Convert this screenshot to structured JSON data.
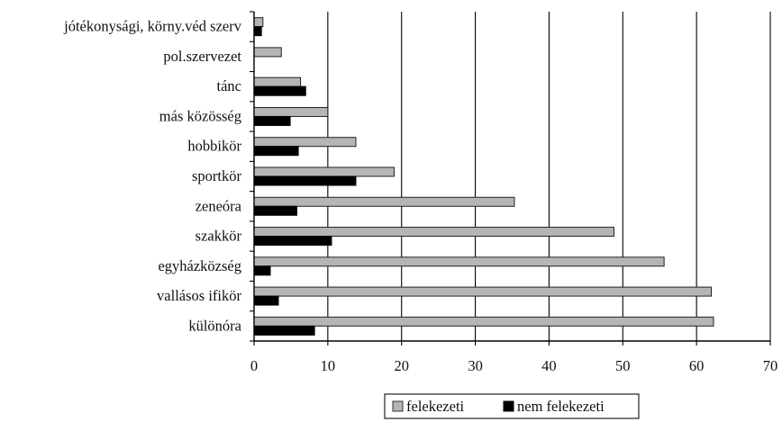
{
  "chart_data": {
    "type": "bar",
    "orientation": "horizontal",
    "categories": [
      "jótékonysági, körny.véd szerv",
      "pol.szervezet",
      "tánc",
      "más közösség",
      "hobbikör",
      "sportkör",
      "zeneóra",
      "szakkör",
      "egyházközség",
      "vallásos ifikör",
      "különóra"
    ],
    "series": [
      {
        "name": "felekezeti",
        "values": [
          1.2,
          3.7,
          6.3,
          10.0,
          13.8,
          19.0,
          35.3,
          48.8,
          55.6,
          62.0,
          62.3
        ],
        "color": "#b5b5b5"
      },
      {
        "name": "nem felekezeti",
        "values": [
          1.0,
          0,
          7.0,
          4.9,
          6.0,
          13.8,
          5.8,
          10.5,
          2.2,
          3.3,
          8.2
        ],
        "color": "#000000"
      }
    ],
    "xlim": [
      0,
      70
    ],
    "xticks": [
      "0",
      "10",
      "20",
      "30",
      "40",
      "50",
      "60",
      "70"
    ],
    "grid": "vertical",
    "legend_position": "bottom"
  }
}
